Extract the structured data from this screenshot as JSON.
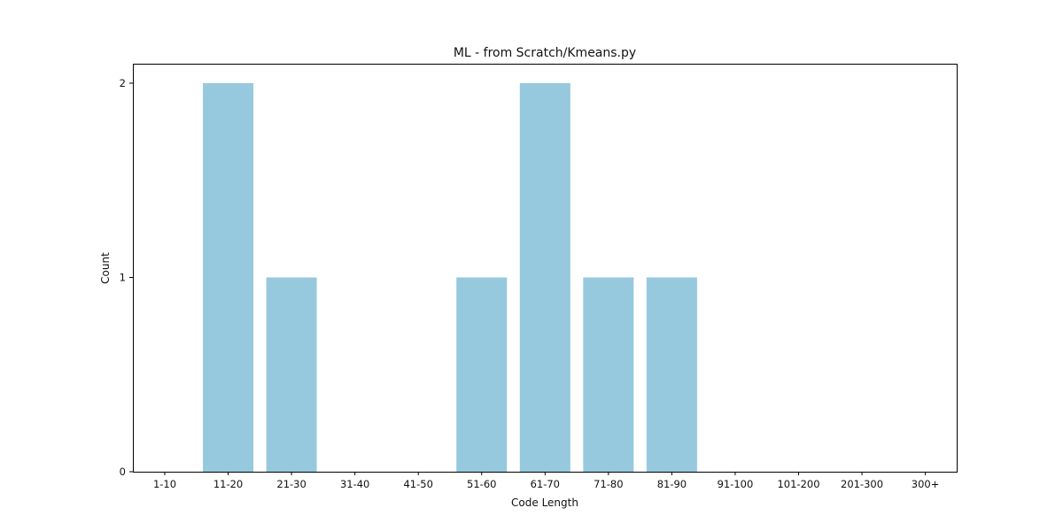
{
  "chart_data": {
    "type": "bar",
    "title": "ML - from Scratch/Kmeans.py",
    "xlabel": "Code Length",
    "ylabel": "Count",
    "categories": [
      "1-10",
      "11-20",
      "21-30",
      "31-40",
      "41-50",
      "51-60",
      "61-70",
      "71-80",
      "81-90",
      "91-100",
      "101-200",
      "201-300",
      "300+"
    ],
    "values": [
      0,
      2,
      1,
      0,
      0,
      1,
      2,
      1,
      1,
      0,
      0,
      0,
      0
    ],
    "yticks": [
      "0",
      "1",
      "2"
    ],
    "ylim": [
      0,
      2.1
    ],
    "bar_color": "#96c9dd",
    "grid": false,
    "legend": "none"
  }
}
